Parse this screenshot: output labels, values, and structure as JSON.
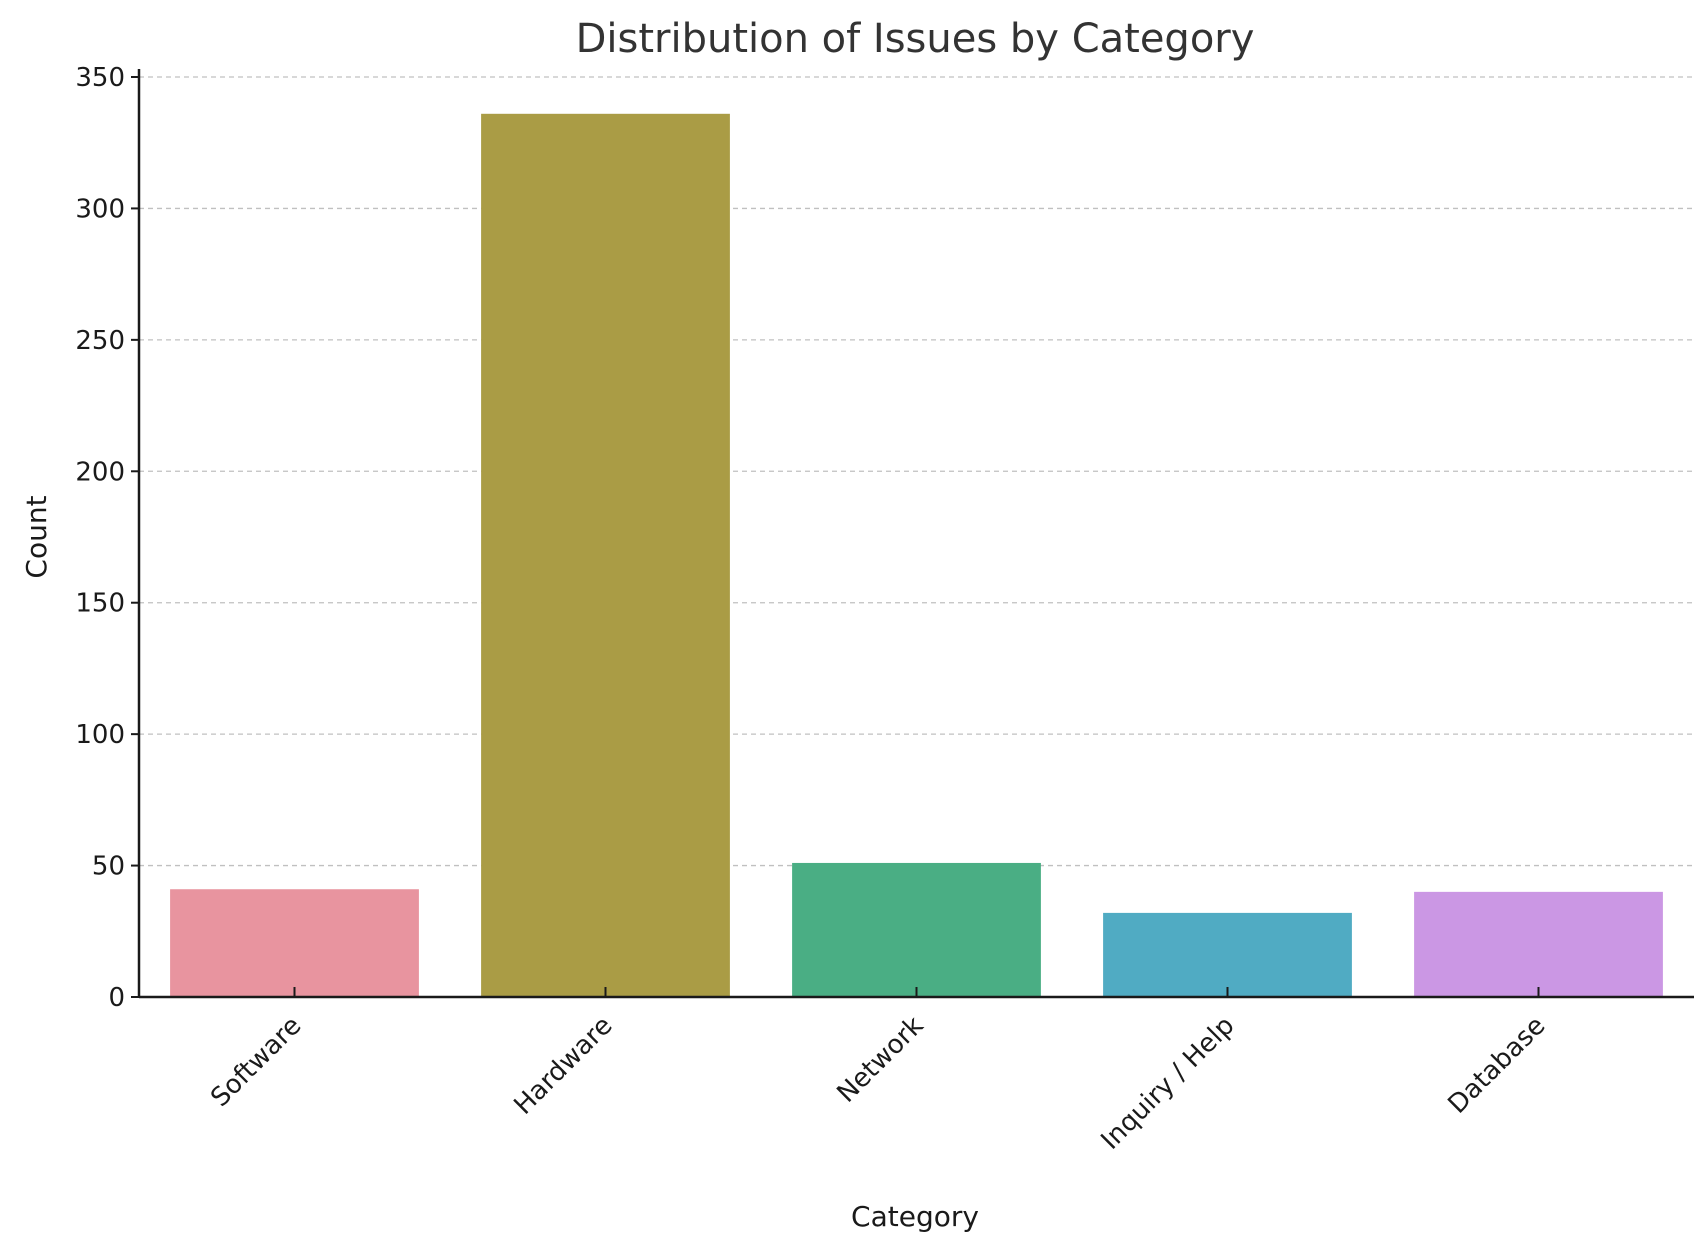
{
  "chart_data": {
    "type": "bar",
    "title": "Distribution of Issues by Category",
    "xlabel": "Category",
    "ylabel": "Count",
    "categories": [
      "Software",
      "Hardware",
      "Network",
      "Inquiry / Help",
      "Database"
    ],
    "values": [
      41,
      336,
      51,
      32,
      40
    ],
    "colors": [
      "#e8949f",
      "#aa9c45",
      "#4aae84",
      "#50abc3",
      "#cb97e4"
    ],
    "ylim": [
      0,
      350
    ],
    "yticks": [
      "0",
      "50",
      "100",
      "150",
      "200",
      "250",
      "300",
      "350"
    ],
    "grid": "horizontal dashed",
    "legend": "none"
  }
}
